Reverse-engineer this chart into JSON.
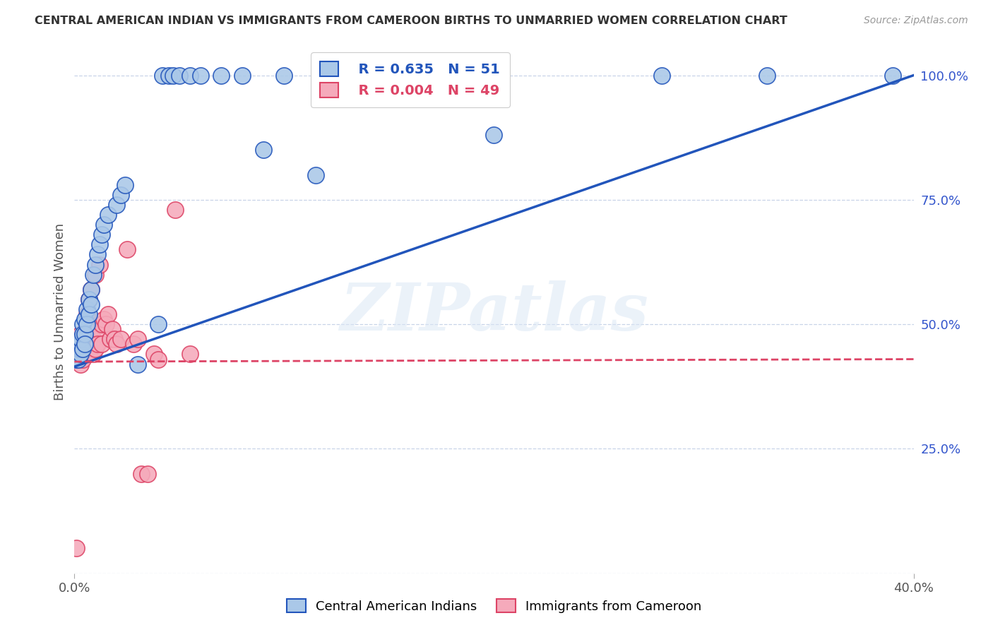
{
  "title": "CENTRAL AMERICAN INDIAN VS IMMIGRANTS FROM CAMEROON BIRTHS TO UNMARRIED WOMEN CORRELATION CHART",
  "source": "Source: ZipAtlas.com",
  "ylabel": "Births to Unmarried Women",
  "legend_label_blue": "Central American Indians",
  "legend_label_pink": "Immigrants from Cameroon",
  "legend_R_blue": "R = 0.635",
  "legend_N_blue": "N = 51",
  "legend_R_pink": "R = 0.004",
  "legend_N_pink": "N = 49",
  "watermark": "ZIPatlas",
  "xlim": [
    0.0,
    0.4
  ],
  "ylim": [
    0.0,
    1.05
  ],
  "color_blue": "#aac8e8",
  "color_pink": "#f5aabb",
  "line_blue": "#2255bb",
  "line_pink": "#dd4466",
  "grid_color": "#c8d4e8",
  "background_color": "#ffffff",
  "blue_x": [
    0.001,
    0.001,
    0.001,
    0.002,
    0.002,
    0.002,
    0.002,
    0.003,
    0.003,
    0.003,
    0.003,
    0.004,
    0.004,
    0.004,
    0.005,
    0.005,
    0.005,
    0.006,
    0.006,
    0.007,
    0.007,
    0.008,
    0.008,
    0.009,
    0.01,
    0.011,
    0.012,
    0.013,
    0.014,
    0.016,
    0.02,
    0.022,
    0.024,
    0.03,
    0.04,
    0.042,
    0.045,
    0.047,
    0.05,
    0.055,
    0.06,
    0.07,
    0.08,
    0.09,
    0.1,
    0.115,
    0.155,
    0.2,
    0.28,
    0.33,
    0.39
  ],
  "blue_y": [
    0.45,
    0.44,
    0.43,
    0.46,
    0.44,
    0.43,
    0.45,
    0.46,
    0.45,
    0.44,
    0.47,
    0.5,
    0.48,
    0.45,
    0.51,
    0.48,
    0.46,
    0.53,
    0.5,
    0.55,
    0.52,
    0.57,
    0.54,
    0.6,
    0.62,
    0.64,
    0.66,
    0.68,
    0.7,
    0.72,
    0.74,
    0.76,
    0.78,
    0.42,
    0.5,
    1.0,
    1.0,
    1.0,
    1.0,
    1.0,
    1.0,
    1.0,
    1.0,
    0.85,
    1.0,
    0.8,
    1.0,
    0.88,
    1.0,
    1.0,
    1.0
  ],
  "pink_x": [
    0.001,
    0.001,
    0.002,
    0.002,
    0.002,
    0.003,
    0.003,
    0.003,
    0.004,
    0.004,
    0.004,
    0.005,
    0.005,
    0.005,
    0.006,
    0.006,
    0.006,
    0.007,
    0.007,
    0.007,
    0.008,
    0.008,
    0.008,
    0.009,
    0.009,
    0.01,
    0.01,
    0.011,
    0.011,
    0.012,
    0.013,
    0.013,
    0.014,
    0.015,
    0.016,
    0.017,
    0.018,
    0.019,
    0.02,
    0.022,
    0.025,
    0.028,
    0.03,
    0.032,
    0.035,
    0.038,
    0.04,
    0.048,
    0.055
  ],
  "pink_y": [
    0.05,
    0.43,
    0.44,
    0.45,
    0.43,
    0.42,
    0.44,
    0.48,
    0.43,
    0.45,
    0.47,
    0.44,
    0.46,
    0.48,
    0.48,
    0.52,
    0.45,
    0.47,
    0.55,
    0.44,
    0.49,
    0.57,
    0.46,
    0.44,
    0.47,
    0.6,
    0.45,
    0.49,
    0.46,
    0.62,
    0.46,
    0.5,
    0.51,
    0.5,
    0.52,
    0.47,
    0.49,
    0.47,
    0.46,
    0.47,
    0.65,
    0.46,
    0.47,
    0.2,
    0.2,
    0.44,
    0.43,
    0.73,
    0.44
  ],
  "ytick_positions": [
    0.0,
    0.25,
    0.5,
    0.75,
    1.0
  ],
  "ytick_labels_right": [
    "",
    "25.0%",
    "50.0%",
    "75.0%",
    "100.0%"
  ],
  "xtick_positions": [
    0.0,
    0.4
  ],
  "xtick_labels": [
    "0.0%",
    "40.0%"
  ],
  "blue_trend_x": [
    0.0,
    0.4
  ],
  "blue_trend_y": [
    0.415,
    1.0
  ],
  "pink_trend_x": [
    0.0,
    0.4
  ],
  "pink_trend_y": [
    0.425,
    0.43
  ]
}
